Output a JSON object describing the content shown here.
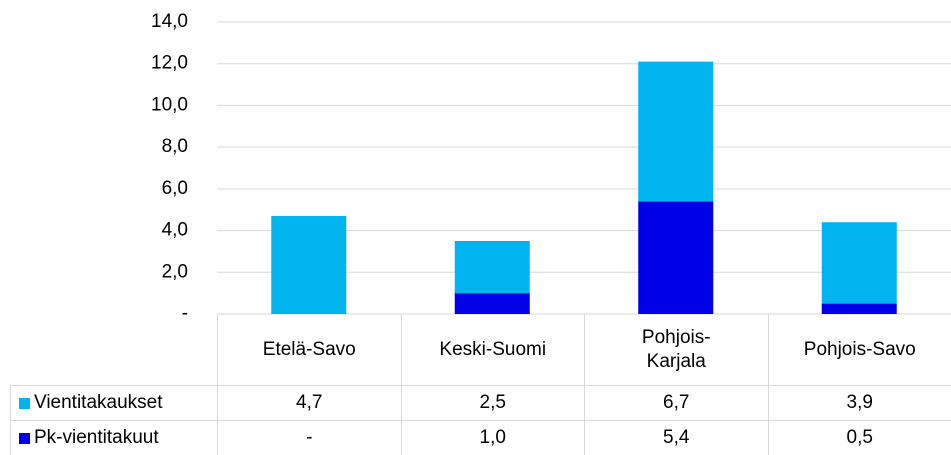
{
  "chart_data": {
    "type": "bar",
    "stacked": true,
    "categories": [
      "Etelä-Savo",
      "Keski-Suomi",
      "Pohjois-\nKarjala",
      "Pohjois-Savo"
    ],
    "series": [
      {
        "name": "Vientitakaukset",
        "color": "#00b4f0",
        "values": [
          4.7,
          2.5,
          6.7,
          3.9
        ],
        "value_labels": [
          "4,7",
          "2,5",
          "6,7",
          "3,9"
        ]
      },
      {
        "name": "Pk-vientitakuut",
        "color": "#0000e6",
        "values": [
          0,
          1.0,
          5.4,
          0.5
        ],
        "value_labels": [
          "-",
          "1,0",
          "5,4",
          "0,5"
        ]
      }
    ],
    "stack_order": [
      1,
      0
    ],
    "ylim": [
      0,
      14
    ],
    "yticks": [
      {
        "value": 0,
        "label": "-"
      },
      {
        "value": 2,
        "label": "2,0"
      },
      {
        "value": 4,
        "label": "4,0"
      },
      {
        "value": 6,
        "label": "6,0"
      },
      {
        "value": 8,
        "label": "8,0"
      },
      {
        "value": 10,
        "label": "10,0"
      },
      {
        "value": 12,
        "label": "12,0"
      },
      {
        "value": 14,
        "label": "14,0"
      }
    ],
    "grid": true
  }
}
